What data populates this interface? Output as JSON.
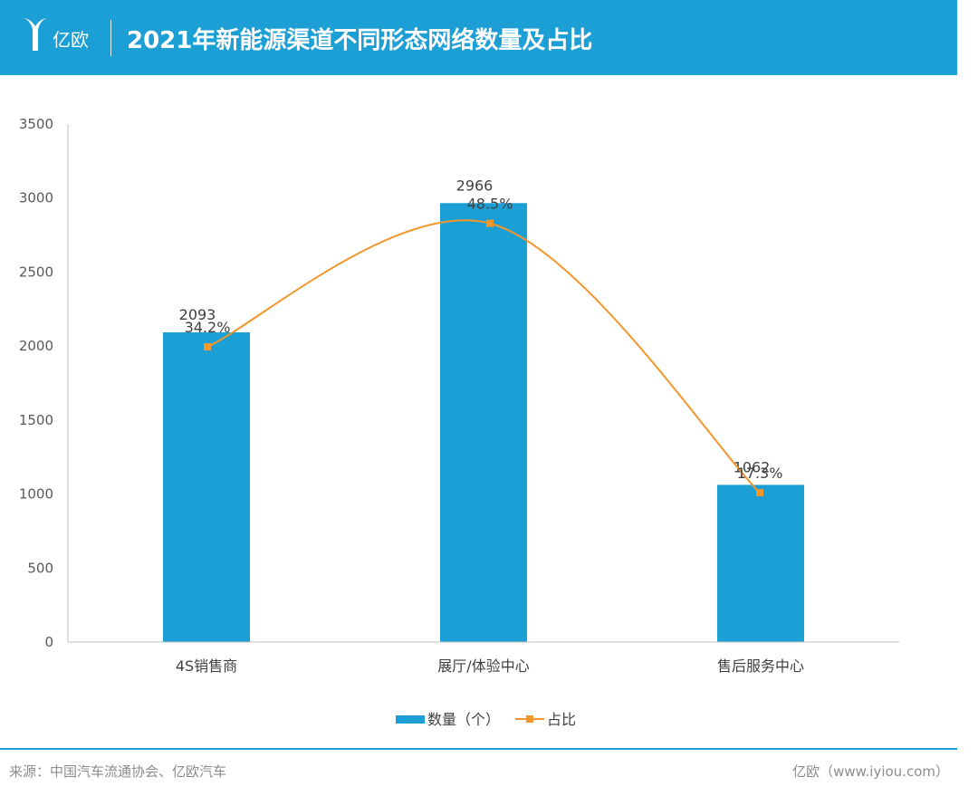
{
  "header": {
    "brand": "亿欧",
    "title": "2021年新能源渠道不同形态网络数量及占比"
  },
  "colors": {
    "bar": "#1b9fd4",
    "line": "#f4962b",
    "header": "#1b9fd4"
  },
  "chart_data": {
    "type": "bar",
    "title": "2021年新能源渠道不同形态网络数量及占比",
    "categories": [
      "4S销售商",
      "展厅/体验中心",
      "售后服务中心"
    ],
    "ylim": [
      0,
      3500
    ],
    "yticks": [
      0,
      500,
      1000,
      1500,
      2000,
      2500,
      3000,
      3500
    ],
    "series": [
      {
        "name": "数量（个）",
        "type": "bar",
        "values": [
          2093,
          2966,
          1062
        ],
        "labels": [
          "2093",
          "2966",
          "1062"
        ]
      },
      {
        "name": "占比",
        "type": "line",
        "values": [
          34.2,
          48.5,
          17.3
        ],
        "labels": [
          "34.2%",
          "48.5%",
          "17.3%"
        ]
      }
    ],
    "legend_position": "bottom"
  },
  "footer": {
    "source": "来源：中国汽车流通协会、亿欧汽车",
    "credit": "亿欧（www.iyiou.com）"
  }
}
